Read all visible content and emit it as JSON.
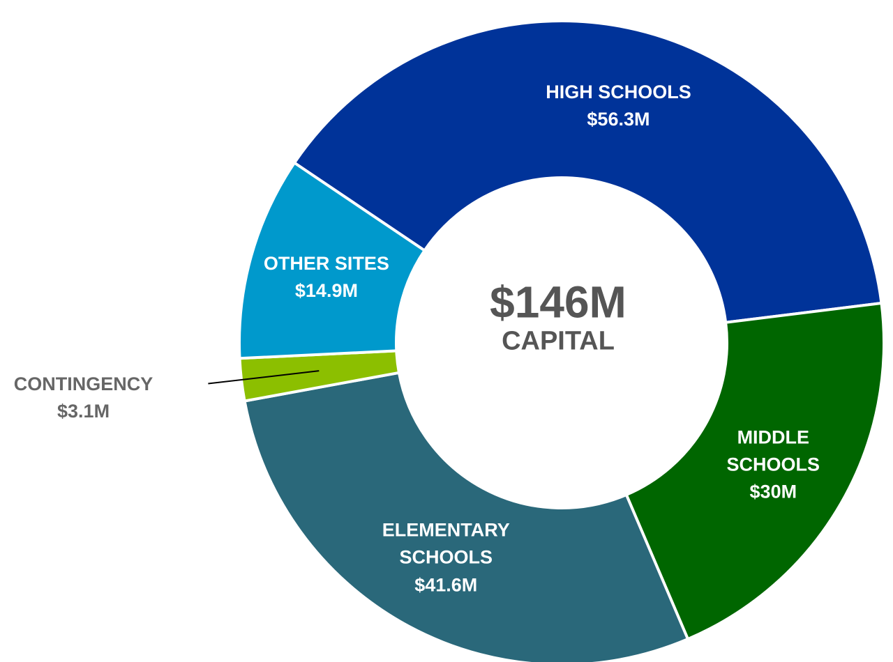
{
  "chart_data": {
    "type": "donut",
    "total_label": "$146M",
    "total_caption": "CAPITAL",
    "categories": [
      "HIGH SCHOOLS",
      "MIDDLE SCHOOLS",
      "ELEMENTARY SCHOOLS",
      "CONTINGENCY",
      "OTHER SITES"
    ],
    "values": [
      56.3,
      30,
      41.6,
      3.1,
      14.9
    ],
    "value_labels": [
      "$56.3M",
      "$30M",
      "$41.6M",
      "$3.1M",
      "$14.9M"
    ],
    "colors": [
      "#003399",
      "#006600",
      "#2a687a",
      "#8cbf00",
      "#0099cc"
    ]
  }
}
